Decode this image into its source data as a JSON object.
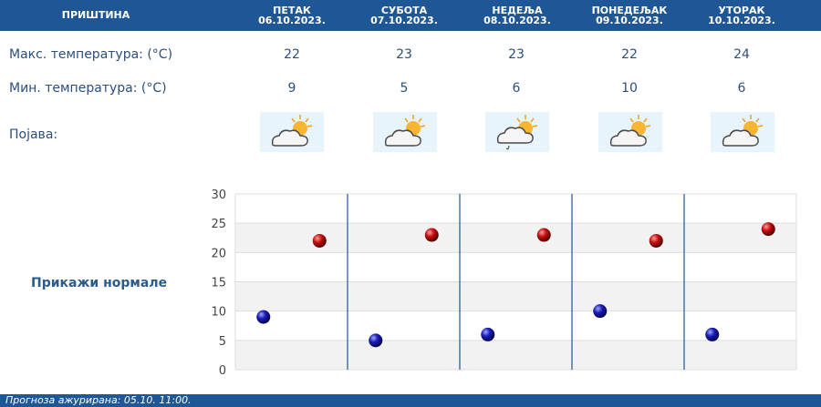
{
  "header": {
    "city": "ПРИШТИНА",
    "days": [
      {
        "name": "ПЕТАК",
        "date": "06.10.2023."
      },
      {
        "name": "СУБОТА",
        "date": "07.10.2023."
      },
      {
        "name": "НЕДЕЉА",
        "date": "08.10.2023."
      },
      {
        "name": "ПОНЕДЕЉАК",
        "date": "09.10.2023."
      },
      {
        "name": "УТОРАК",
        "date": "10.10.2023."
      }
    ]
  },
  "rows": {
    "max_label": "Макс. температура: (°C)",
    "min_label": "Мин. температура: (°C)",
    "phenomenon_label": "Појава:",
    "max_values": [
      "22",
      "23",
      "23",
      "22",
      "24"
    ],
    "min_values": [
      "9",
      "5",
      "6",
      "10",
      "6"
    ],
    "icons": [
      "partly-cloudy-icon",
      "partly-cloudy-icon",
      "partly-cloudy-light-rain-icon",
      "partly-cloudy-icon",
      "partly-cloudy-icon"
    ]
  },
  "show_normals_label": "Прикажи нормале",
  "footer": {
    "text": "Прогноза ажурирана:  05.10. 11:00."
  },
  "chart_data": {
    "type": "scatter",
    "categories": [
      "ПЕТАК",
      "СУБОТА",
      "НЕДЕЉА",
      "ПОНЕДЕЉАК",
      "УТОРАК"
    ],
    "series": [
      {
        "values": [
          9,
          5,
          6,
          10,
          6
        ],
        "color": "#1a1ab8"
      },
      {
        "values": [
          22,
          23,
          23,
          22,
          24
        ],
        "color": "#c41010"
      }
    ],
    "ylim": [
      0,
      30
    ],
    "yticks": [
      0,
      5,
      10,
      15,
      20,
      25,
      30
    ],
    "grid": true
  },
  "colors": {
    "header_bg": "#1f5796",
    "text": "#2c4f7c",
    "icon_bg": "#e8f4fb",
    "chart_band": "#f2f2f2",
    "separator": "#1f5796"
  }
}
